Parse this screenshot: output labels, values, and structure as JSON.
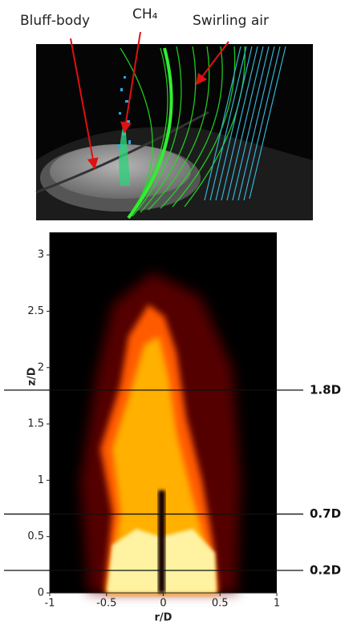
{
  "figure": {
    "labels": {
      "bluff_body": "Bluff-body",
      "ch4": "CH₄",
      "swirling_air": "Swirling air"
    },
    "plot": {
      "xlabel": "r/D",
      "ylabel": "z/D",
      "xlim": [
        -1,
        1
      ],
      "ylim": [
        0,
        3.2
      ],
      "xticks": [
        -1,
        -0.5,
        0,
        0.5,
        1
      ],
      "yticks": [
        0,
        0.5,
        1,
        1.5,
        2,
        2.5,
        3
      ],
      "lines": [
        {
          "value": 1.8,
          "label": "1.8D"
        },
        {
          "value": 0.7,
          "label": "0.7D"
        },
        {
          "value": 0.2,
          "label": "0.2D"
        }
      ]
    }
  }
}
